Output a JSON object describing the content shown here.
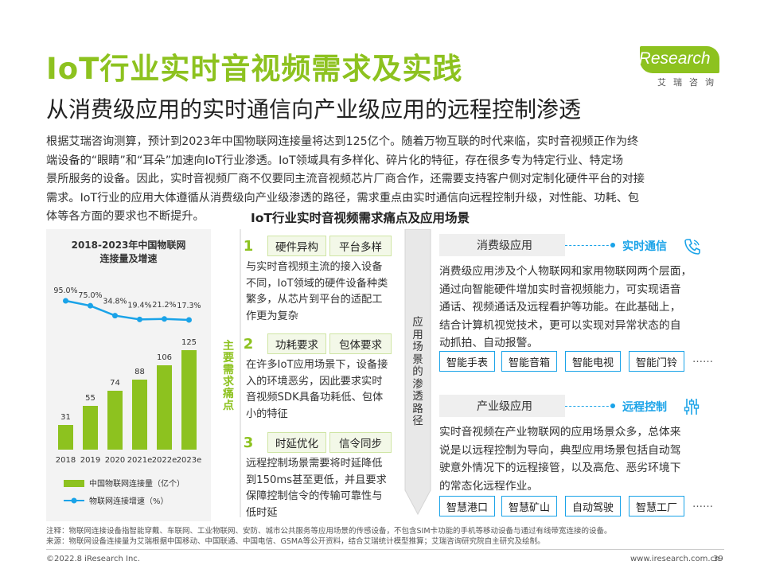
{
  "title": "IoT行业实时音视频需求及实践",
  "subtitle": "从消费级应用的实时通信向产业级应用的远程控制渗透",
  "logo": {
    "brand": "iResearch",
    "cn": "艾瑞咨询"
  },
  "intro_lines": [
    "根据艾瑞咨询测算，预计到2023年中国物联网连接量将达到125亿个。随着万物互联的时代来临，实时音视频正作为终",
    "端设备的“眼睛”和“耳朵”加速向IoT行业渗透。IoT领域具有多样化、碎片化的特征，存在很多专为特定行业、特定场",
    "景所服务的设备。因此，实时音视频厂商不仅要同主流音视频芯片厂商合作，还需要支持客户侧对定制化硬件平台的对接",
    "需求。IoT行业的应用大体遵循从消费级向产业级渗透的路径，需求重点由实时通信向远程控制升级，对性能、功耗、包",
    "体等各方面的要求也不断提升。"
  ],
  "section_title": "IoT行业实时音视频需求痛点及应用场景",
  "chart_data": {
    "type": "bar",
    "title": "2018-2023年中国物联网连接量及增速",
    "title_lines": [
      "2018-2023年中国物联网",
      "连接量及增速"
    ],
    "categories": [
      "2018",
      "2019",
      "2020",
      "2021e",
      "2022e",
      "2023e"
    ],
    "series": [
      {
        "name": "中国物联网连接量（亿个）",
        "type": "bar",
        "values": [
          31,
          55,
          74,
          88,
          106,
          125
        ],
        "color": "#8DC21F"
      },
      {
        "name": "物联网连接增速（%）",
        "type": "line",
        "values": [
          95.0,
          75.0,
          34.8,
          19.4,
          21.2,
          17.3
        ],
        "labels": [
          "95.0%",
          "75.0%",
          "34.8%",
          "19.4%",
          "21.2%",
          "17.3%"
        ],
        "color": "#1aa3e8"
      }
    ],
    "ylim": [
      0,
      140
    ]
  },
  "pain_label": "主要需求痛点",
  "pain_points": [
    {
      "num": "1",
      "tags": [
        "硬件异构",
        "平台多样"
      ],
      "desc": [
        "与实时音视频主流的接入设备",
        "不同，IoT领域的硬件设备种类",
        "繁多，从芯片到平台的适配工",
        "作更为复杂"
      ]
    },
    {
      "num": "2",
      "tags": [
        "功耗要求",
        "包体要求"
      ],
      "desc": [
        "在许多IoT应用场景下，设备接",
        "入的环境恶劣，因此要求实时",
        "音视频SDK具备功耗低、包体",
        "小的特征"
      ]
    },
    {
      "num": "3",
      "tags": [
        "时延优化",
        "信令同步"
      ],
      "desc": [
        "远程控制场景需要将时延降低",
        "到150ms甚至更低，并且要求",
        "保障控制信令的传输可靠性与",
        "低时延"
      ]
    }
  ],
  "path_label": "应用场景的渗透路径",
  "scenes": [
    {
      "title": "消费级应用",
      "label": "实时通信",
      "icon": "phone-icon",
      "desc": [
        "消费级应用涉及个人物联网和家用物联网两个层面，",
        "通过向智能硬件增加实时音视频能力，可实现语音",
        "通话、视频通话及远程看护等功能。在此基础上，",
        "结合计算机视觉技术，更可以实现对异常状态的自",
        "动抓拍、自动报警。"
      ],
      "tags": [
        "智能手表",
        "智能音箱",
        "智能电视",
        "智能门铃"
      ],
      "more": "……"
    },
    {
      "title": "产业级应用",
      "label": "远程控制",
      "icon": "sliders-icon",
      "desc": [
        "实时音视频在产业物联网的应用场景众多，总体来",
        "说是以远程控制为导向，典型应用场景包括自动驾",
        "驶意外情况下的远程接管，以及高危、恶劣环境下",
        "的常态化远程作业。"
      ],
      "tags": [
        "智慧港口",
        "智慧矿山",
        "自动驾驶",
        "智慧工厂"
      ],
      "more": "……"
    }
  ],
  "notes": [
    "注释：物联网连接设备指智能穿戴、车联网、工业物联网、安防、城市公共服务等应用场景的传感设备，不包含SIM卡功能的手机等移动设备与通过有线带宽连接的设备。",
    "来源：物联网设备连接量为艾瑞根据中国移动、中国联通、中国电信、GSMA等公开资料，结合艾瑞统计模型推算；艾瑞咨询研究院自主研究及绘制。"
  ],
  "footer": {
    "copyright": "©2022.8 iResearch Inc.",
    "url": "www.iresearch.com.cn",
    "page": "39"
  },
  "colors": {
    "green": "#8DC21F",
    "blue": "#1aa3e8"
  }
}
